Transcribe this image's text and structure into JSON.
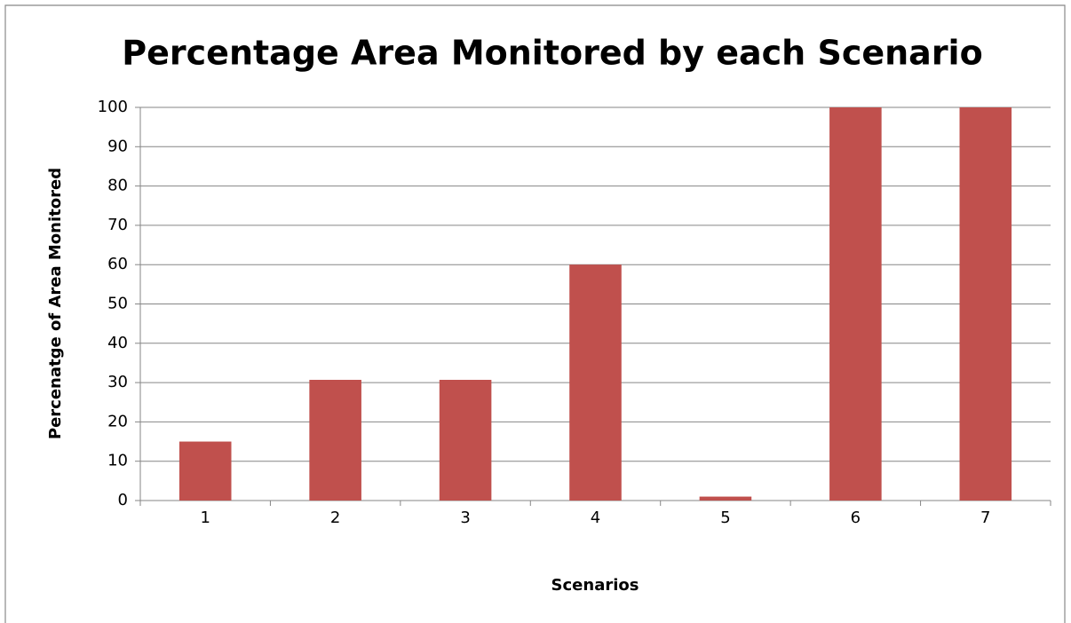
{
  "chart_data": {
    "type": "bar",
    "title": "Percentage Area Monitored by each Scenario",
    "x_label": "Scenarios",
    "y_label": "Percenatge of Area Monitored",
    "categories": [
      "1",
      "2",
      "3",
      "4",
      "5",
      "6",
      "7"
    ],
    "values": [
      15,
      30.7,
      30.7,
      60,
      1,
      100,
      100
    ],
    "color": "#c0504d",
    "ylim": [
      0,
      100
    ],
    "yticks": [
      0,
      10,
      20,
      30,
      40,
      50,
      60,
      70,
      80,
      90,
      100
    ],
    "grid": true
  }
}
